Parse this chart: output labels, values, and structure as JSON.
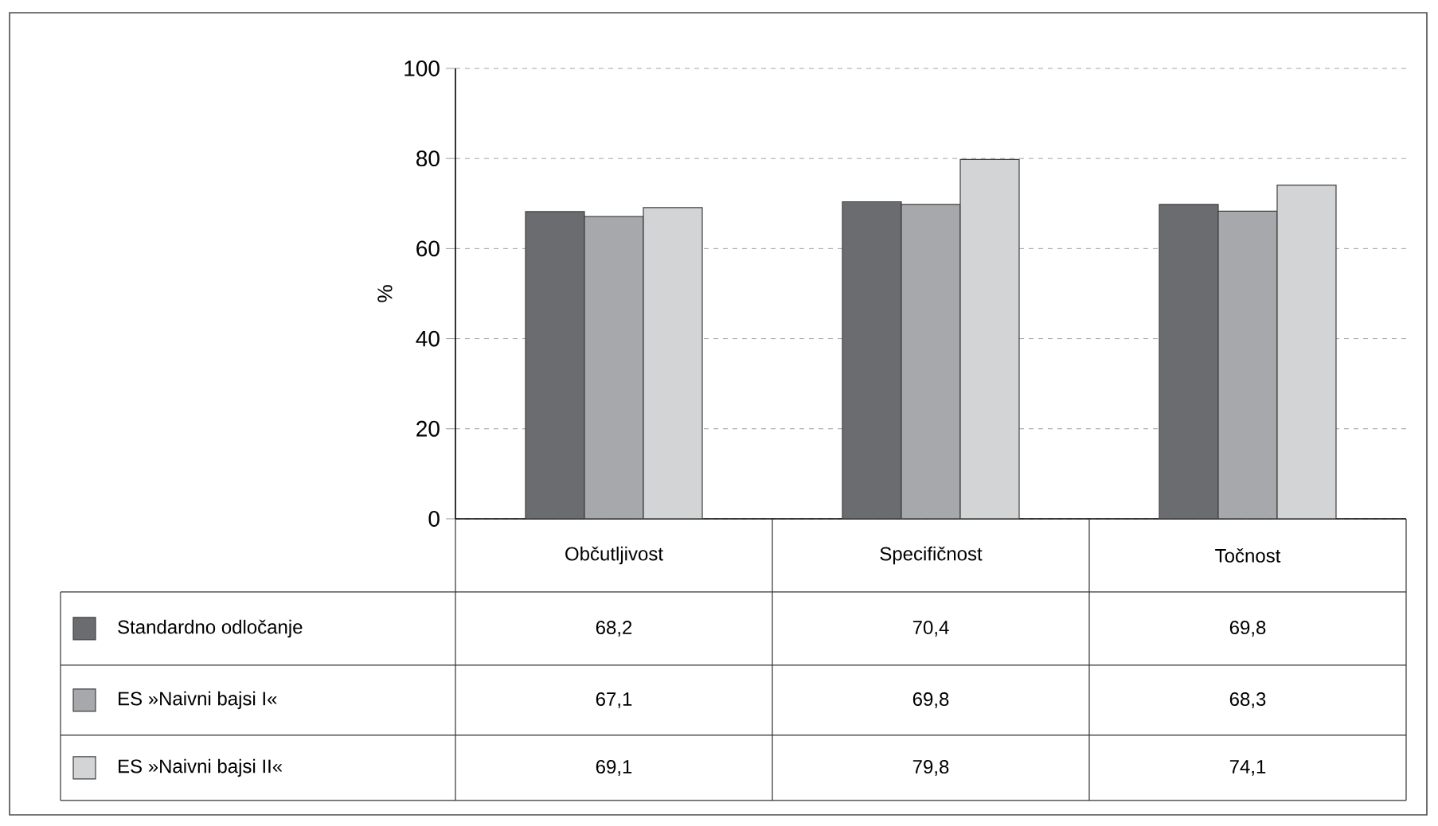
{
  "chart_data": {
    "type": "bar",
    "ylabel": "%",
    "categories": [
      "Občutljivost",
      "Specifičnost",
      "Točnost"
    ],
    "series": [
      {
        "name": "Standardno odločanje",
        "color": "#6b6c70",
        "values": [
          68.2,
          70.4,
          69.8
        ],
        "value_labels": [
          "68,2",
          "70,4",
          "69,8"
        ]
      },
      {
        "name": "ES »Naivni bajsi I«",
        "color": "#a7a8ab",
        "values": [
          67.1,
          69.8,
          68.3
        ],
        "value_labels": [
          "67,1",
          "69,8",
          "68,3"
        ]
      },
      {
        "name": "ES »Naivni bajsi II«",
        "color": "#d3d4d6",
        "values": [
          69.1,
          79.8,
          74.1
        ],
        "value_labels": [
          "69,1",
          "79,8",
          "74,1"
        ]
      }
    ],
    "ylim": [
      0,
      100
    ],
    "yticks": [
      0,
      20,
      40,
      60,
      80,
      100
    ],
    "grid": "y",
    "legend": "bottom left"
  }
}
